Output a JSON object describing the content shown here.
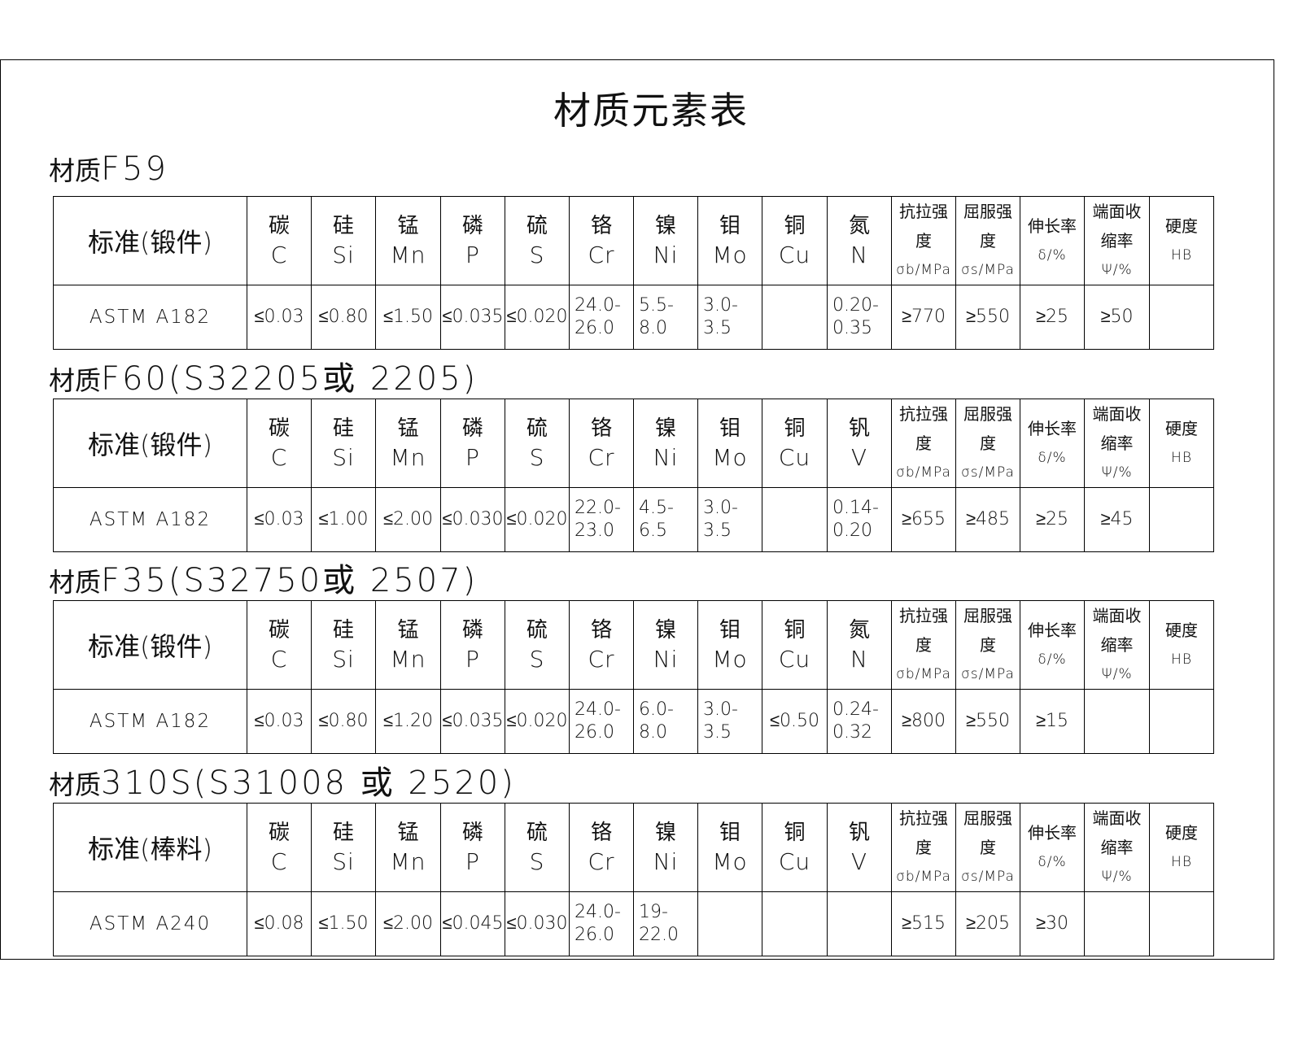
{
  "title": "材质元素表",
  "header_columns": [
    {
      "cn": "碳",
      "sym": "C"
    },
    {
      "cn": "硅",
      "sym": "Si"
    },
    {
      "cn": "锰",
      "sym": "Mn"
    },
    {
      "cn": "磷",
      "sym": "P"
    },
    {
      "cn": "硫",
      "sym": "S"
    },
    {
      "cn": "铬",
      "sym": "Cr"
    },
    {
      "cn": "镍",
      "sym": "Ni"
    },
    {
      "cn": "钼",
      "sym": "Mo"
    },
    {
      "cn": "铜",
      "sym": "Cu"
    },
    {
      "cn": "",
      "sym": ""
    },
    {
      "cn": "抗拉强度",
      "sym": "σb/MPa"
    },
    {
      "cn": "屈服强度",
      "sym": "σs/MPa"
    },
    {
      "cn": "伸长率",
      "sym": "δ/%"
    },
    {
      "cn": "端面收缩率",
      "sym": "Ψ/%"
    },
    {
      "cn": "硬度",
      "sym": "HB"
    }
  ],
  "sections": [
    {
      "label_prefix": "材质",
      "label": "F59",
      "standard_header": "标准(锻件)",
      "col10": {
        "cn": "氮",
        "sym": "N"
      },
      "standard": "ASTM A182",
      "values": [
        "≤0.03",
        "≤0.80",
        "≤1.50",
        "≤0.035",
        "≤0.020",
        "24.0-\n26.0",
        "5.5-\n8.0",
        "3.0-\n3.5",
        "",
        "0.20-\n0.35",
        "≥770",
        "≥550",
        "≥25",
        "≥50",
        ""
      ]
    },
    {
      "label_prefix": "材质",
      "label": "F60(S32205或 2205)",
      "standard_header": "标准(锻件)",
      "col10": {
        "cn": "钒",
        "sym": "V"
      },
      "standard": "ASTM A182",
      "values": [
        "≤0.03",
        "≤1.00",
        "≤2.00",
        "≤0.030",
        "≤0.020",
        "22.0-\n23.0",
        "4.5-\n6.5",
        "3.0-\n3.5",
        "",
        "0.14-\n0.20",
        "≥655",
        "≥485",
        "≥25",
        "≥45",
        ""
      ]
    },
    {
      "label_prefix": "材质",
      "label": "F35(S32750或 2507)",
      "standard_header": "标准(锻件)",
      "col10": {
        "cn": "氮",
        "sym": "N"
      },
      "standard": "ASTM A182",
      "values": [
        "≤0.03",
        "≤0.80",
        "≤1.20",
        "≤0.035",
        "≤0.020",
        "24.0-\n26.0",
        "6.0-\n8.0",
        "3.0-\n3.5",
        "≤0.50",
        "0.24-\n0.32",
        "≥800",
        "≥550",
        "≥15",
        "",
        ""
      ]
    },
    {
      "label_prefix": "材质",
      "label": "310S(S31008 或 2520)",
      "standard_header": "标准(棒料)",
      "col10": {
        "cn": "钒",
        "sym": "V"
      },
      "standard": "ASTM A240",
      "values": [
        "≤0.08",
        "≤1.50",
        "≤2.00",
        "≤0.045",
        "≤0.030",
        "24.0-\n26.0",
        "19-\n22.0",
        "",
        "",
        "",
        "≥515",
        "≥205",
        "≥30",
        "",
        ""
      ]
    }
  ]
}
